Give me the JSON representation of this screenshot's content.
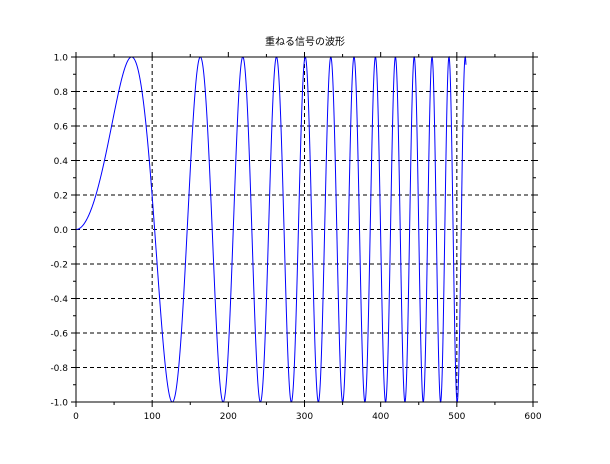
{
  "chart_data": {
    "type": "line",
    "title": "重ねる信号の波形",
    "xlabel": "",
    "ylabel": "",
    "xlim": [
      0,
      600
    ],
    "ylim": [
      -1.0,
      1.0
    ],
    "x_ticks": [
      "0",
      "100",
      "200",
      "300",
      "400",
      "500",
      "600"
    ],
    "y_ticks": [
      "-1.0",
      "-0.8",
      "-0.6",
      "-0.4",
      "-0.2",
      "0.0",
      "0.2",
      "0.4",
      "0.6",
      "0.8",
      "1.0"
    ],
    "grid": true,
    "x_grid_at": [
      100,
      300,
      500
    ],
    "series": [
      {
        "type": "chirp",
        "color": "#0000ff",
        "x_start": 0,
        "x_end": 512,
        "samples": 512,
        "amplitude": 1.0,
        "peaks_x": [
          73,
          126
        ]
      }
    ]
  },
  "colors": {
    "background": "#ffffff",
    "axis": "#000000",
    "grid": "#000000",
    "series": "#0000ff"
  }
}
